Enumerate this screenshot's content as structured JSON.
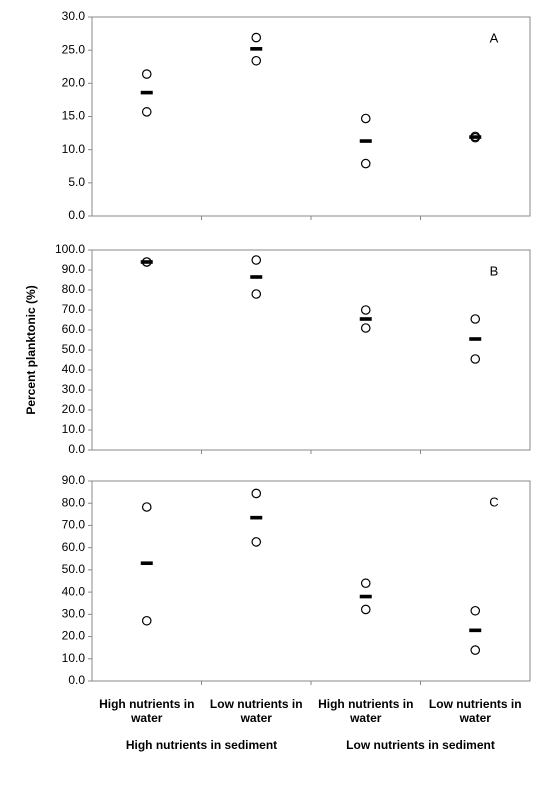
{
  "ylabel": "Percent planktonic (%)",
  "chart_data": [
    {
      "type": "dot",
      "label": "A",
      "ylim": [
        0,
        30
      ],
      "yticks": [
        {
          "value": 0,
          "label": "0.0"
        },
        {
          "value": 5,
          "label": "5.0"
        },
        {
          "value": 10,
          "label": "10.0"
        },
        {
          "value": 15,
          "label": "15.0"
        },
        {
          "value": 20,
          "label": "20.0"
        },
        {
          "value": 25,
          "label": "25.0"
        },
        {
          "value": 30,
          "label": "30.0"
        }
      ],
      "points": [
        [
          21.4,
          15.7
        ],
        [
          26.9,
          23.4
        ],
        [
          14.7,
          7.9
        ],
        [
          12.0,
          11.8
        ]
      ],
      "means": [
        18.6,
        25.2,
        11.3,
        11.9
      ]
    },
    {
      "type": "dot",
      "label": "B",
      "ylim": [
        0,
        100
      ],
      "yticks": [
        {
          "value": 0,
          "label": "0.0"
        },
        {
          "value": 10,
          "label": "10.0"
        },
        {
          "value": 20,
          "label": "20.0"
        },
        {
          "value": 30,
          "label": "30.0"
        },
        {
          "value": 40,
          "label": "40.0"
        },
        {
          "value": 50,
          "label": "50.0"
        },
        {
          "value": 60,
          "label": "60.0"
        },
        {
          "value": 70,
          "label": "70.0"
        },
        {
          "value": 80,
          "label": "80.0"
        },
        {
          "value": 90,
          "label": "90.0"
        },
        {
          "value": 100,
          "label": "100.0"
        }
      ],
      "points": [
        [
          94,
          94
        ],
        [
          95,
          78
        ],
        [
          70,
          61
        ],
        [
          65.5,
          45.5
        ]
      ],
      "means": [
        94,
        86.5,
        65.5,
        55.5
      ]
    },
    {
      "type": "dot",
      "label": "C",
      "ylim": [
        0,
        90
      ],
      "yticks": [
        {
          "value": 0,
          "label": "0.0"
        },
        {
          "value": 10,
          "label": "10.0"
        },
        {
          "value": 20,
          "label": "20.0"
        },
        {
          "value": 30,
          "label": "30.0"
        },
        {
          "value": 40,
          "label": "40.0"
        },
        {
          "value": 50,
          "label": "50.0"
        },
        {
          "value": 60,
          "label": "60.0"
        },
        {
          "value": 70,
          "label": "70.0"
        },
        {
          "value": 80,
          "label": "80.0"
        },
        {
          "value": 90,
          "label": "90.0"
        }
      ],
      "points": [
        [
          78.3,
          27.1
        ],
        [
          84.4,
          62.6
        ],
        [
          44,
          32.2
        ],
        [
          31.6,
          13.9
        ]
      ],
      "means": [
        53,
        73.5,
        38,
        22.8
      ],
      "categories": [
        "High nutrients in water",
        "Low nutrients in water",
        "High nutrients in water",
        "Low nutrients in water"
      ],
      "groups": [
        "High nutrients in sediment",
        "Low nutrients in sediment"
      ]
    }
  ]
}
